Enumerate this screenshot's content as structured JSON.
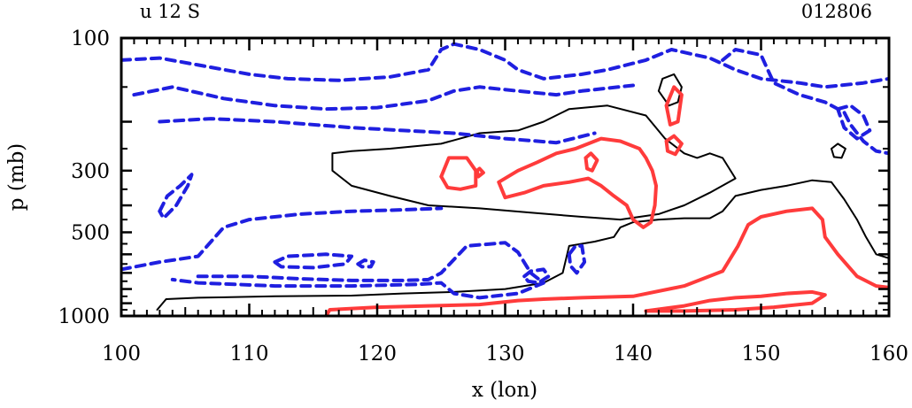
{
  "chart_data": {
    "type": "contour",
    "title_left": "u 12 S",
    "title_right": "012806",
    "xlabel": "x (lon)",
    "ylabel": "p (mb)",
    "xlim": [
      100,
      160
    ],
    "ylim": [
      1000,
      100
    ],
    "y_scale": "log",
    "xticks": [
      100,
      110,
      120,
      130,
      140,
      150,
      160
    ],
    "xtick_labels": [
      "100",
      "110",
      "120",
      "130",
      "140",
      "150",
      "160"
    ],
    "yticks": [
      100,
      300,
      500,
      1000
    ],
    "ytick_labels": [
      "100",
      "300",
      "500",
      "1000"
    ],
    "contour_styles": {
      "positive": {
        "color": "#ff3b3b",
        "line": "solid"
      },
      "zero": {
        "color": "#000000",
        "line": "solid"
      },
      "negative": {
        "color": "#1f1fe0",
        "line": "dashed"
      }
    },
    "contours": [
      {
        "sign": "zero",
        "points": [
          [
            102.8,
            950
          ],
          [
            103.5,
            870
          ],
          [
            106,
            860
          ],
          [
            112,
            850
          ],
          [
            118,
            845
          ],
          [
            122,
            830
          ],
          [
            126,
            820
          ],
          [
            130,
            800
          ],
          [
            133,
            760
          ],
          [
            134.5,
            700
          ],
          [
            135,
            560
          ],
          [
            137,
            540
          ],
          [
            138.5,
            520
          ],
          [
            139,
            480
          ],
          [
            140,
            460
          ],
          [
            142,
            450
          ],
          [
            144,
            445
          ],
          [
            146,
            445
          ],
          [
            147,
            420
          ],
          [
            148,
            370
          ],
          [
            150,
            352
          ],
          [
            152,
            340
          ],
          [
            154,
            325
          ],
          [
            155.5,
            330
          ],
          [
            156.5,
            380
          ],
          [
            157.5,
            450
          ],
          [
            158.2,
            520
          ],
          [
            159,
            600
          ],
          [
            160,
            620
          ]
        ]
      },
      {
        "sign": "zero",
        "points": [
          [
            116.5,
            260
          ],
          [
            118,
            255
          ],
          [
            121,
            250
          ],
          [
            125,
            240
          ],
          [
            128,
            220
          ],
          [
            131,
            215
          ],
          [
            133,
            200
          ],
          [
            135,
            180
          ],
          [
            138,
            175
          ],
          [
            141,
            190
          ],
          [
            142.5,
            230
          ],
          [
            144,
            260
          ],
          [
            145,
            270
          ],
          [
            146,
            260
          ],
          [
            147,
            270
          ],
          [
            148,
            320
          ],
          [
            146,
            360
          ],
          [
            144,
            400
          ],
          [
            142,
            430
          ],
          [
            139,
            450
          ],
          [
            136,
            440
          ],
          [
            132,
            425
          ],
          [
            128,
            410
          ],
          [
            124,
            400
          ],
          [
            121,
            370
          ],
          [
            118,
            340
          ],
          [
            116.5,
            300
          ],
          [
            116.5,
            260
          ]
        ]
      },
      {
        "sign": "zero",
        "points": [
          [
            142,
            155
          ],
          [
            142.3,
            140
          ],
          [
            143.2,
            135
          ],
          [
            143.8,
            150
          ],
          [
            143.5,
            170
          ],
          [
            142.8,
            175
          ],
          [
            142,
            155
          ]
        ]
      },
      {
        "sign": "zero",
        "points": [
          [
            155.5,
            250
          ],
          [
            156,
            240
          ],
          [
            156.6,
            250
          ],
          [
            156.3,
            270
          ],
          [
            155.7,
            268
          ],
          [
            155.5,
            250
          ]
        ]
      },
      {
        "sign": "positive",
        "points": [
          [
            116,
            1000
          ],
          [
            116.3,
            950
          ],
          [
            120,
            930
          ],
          [
            124,
            920
          ],
          [
            128,
            910
          ],
          [
            131,
            880
          ],
          [
            133,
            870
          ],
          [
            136,
            860
          ],
          [
            140,
            850
          ],
          [
            144,
            780
          ],
          [
            147,
            690
          ],
          [
            148.2,
            560
          ],
          [
            149,
            470
          ],
          [
            150,
            440
          ],
          [
            152,
            420
          ],
          [
            154,
            410
          ],
          [
            154.8,
            450
          ],
          [
            155,
            520
          ],
          [
            156,
            600
          ],
          [
            157.5,
            720
          ],
          [
            159,
            780
          ],
          [
            160,
            790
          ]
        ]
      },
      {
        "sign": "positive",
        "points": [
          [
            125,
            315
          ],
          [
            125.6,
            270
          ],
          [
            127,
            270
          ],
          [
            127.7,
            300
          ],
          [
            127.7,
            340
          ],
          [
            126.5,
            350
          ],
          [
            125.5,
            345
          ],
          [
            125,
            315
          ]
        ]
      },
      {
        "sign": "positive",
        "points": [
          [
            127.8,
            300
          ],
          [
            128,
            295
          ],
          [
            128.3,
            305
          ],
          [
            127.9,
            315
          ],
          [
            127.8,
            300
          ]
        ]
      },
      {
        "sign": "positive",
        "points": [
          [
            129.5,
            330
          ],
          [
            131,
            300
          ],
          [
            132.5,
            280
          ],
          [
            134,
            260
          ],
          [
            135.5,
            250
          ],
          [
            137.5,
            230
          ],
          [
            139,
            235
          ],
          [
            140.5,
            250
          ],
          [
            141,
            270
          ],
          [
            141.5,
            300
          ],
          [
            141.8,
            340
          ],
          [
            141.7,
            400
          ],
          [
            141.4,
            460
          ],
          [
            140.8,
            480
          ],
          [
            140,
            450
          ],
          [
            139.5,
            400
          ],
          [
            138.5,
            370
          ],
          [
            137.5,
            340
          ],
          [
            136.5,
            320
          ],
          [
            135,
            330
          ],
          [
            133,
            340
          ],
          [
            131.5,
            360
          ],
          [
            130,
            375
          ],
          [
            129.5,
            330
          ]
        ]
      },
      {
        "sign": "positive",
        "points": [
          [
            136.3,
            270
          ],
          [
            136.7,
            260
          ],
          [
            137.2,
            275
          ],
          [
            136.8,
            300
          ],
          [
            136.4,
            295
          ],
          [
            136.3,
            270
          ]
        ]
      },
      {
        "sign": "positive",
        "points": [
          [
            142.6,
            175
          ],
          [
            143.2,
            150
          ],
          [
            143.8,
            160
          ],
          [
            143.5,
            200
          ],
          [
            142.9,
            205
          ],
          [
            142.6,
            175
          ]
        ]
      },
      {
        "sign": "positive",
        "points": [
          [
            142.6,
            235
          ],
          [
            143.2,
            225
          ],
          [
            143.8,
            240
          ],
          [
            143.3,
            262
          ],
          [
            142.7,
            255
          ],
          [
            142.6,
            235
          ]
        ]
      },
      {
        "sign": "positive",
        "points": [
          [
            141,
            960
          ],
          [
            144,
            920
          ],
          [
            146,
            880
          ],
          [
            148,
            860
          ],
          [
            150,
            850
          ],
          [
            152,
            830
          ],
          [
            154,
            820
          ],
          [
            155,
            840
          ],
          [
            154,
            900
          ],
          [
            151,
            930
          ],
          [
            148,
            950
          ],
          [
            144,
            960
          ],
          [
            141,
            960
          ]
        ]
      },
      {
        "sign": "negative",
        "points": [
          [
            100,
            120
          ],
          [
            103,
            118
          ],
          [
            106,
            125
          ],
          [
            110,
            135
          ],
          [
            113,
            140
          ],
          [
            117,
            142
          ],
          [
            121,
            138
          ],
          [
            124,
            130
          ],
          [
            125,
            110
          ],
          [
            126,
            105
          ],
          [
            128,
            110
          ],
          [
            130,
            120
          ],
          [
            131,
            130
          ],
          [
            133,
            140
          ],
          [
            136,
            135
          ],
          [
            138,
            130
          ],
          [
            141,
            120
          ],
          [
            143,
            110
          ],
          [
            146,
            118
          ],
          [
            148,
            130
          ],
          [
            150,
            140
          ],
          [
            153,
            145
          ],
          [
            155,
            150
          ],
          [
            158,
            145
          ],
          [
            160,
            140
          ]
        ]
      },
      {
        "sign": "negative",
        "points": [
          [
            101,
            160
          ],
          [
            104,
            150
          ],
          [
            108,
            165
          ],
          [
            112,
            175
          ],
          [
            116,
            180
          ],
          [
            120,
            178
          ],
          [
            124,
            168
          ],
          [
            126,
            155
          ],
          [
            128,
            150
          ],
          [
            131,
            155
          ],
          [
            134,
            160
          ],
          [
            136,
            155
          ],
          [
            140,
            148
          ]
        ]
      },
      {
        "sign": "negative",
        "points": [
          [
            103,
            200
          ],
          [
            107,
            195
          ],
          [
            112,
            200
          ],
          [
            118,
            210
          ],
          [
            122,
            215
          ],
          [
            126,
            220
          ],
          [
            130,
            230
          ],
          [
            134,
            238
          ],
          [
            137,
            220
          ]
        ]
      },
      {
        "sign": "negative",
        "points": [
          [
            100,
            680
          ],
          [
            103,
            640
          ],
          [
            106,
            610
          ],
          [
            108,
            480
          ],
          [
            110,
            450
          ],
          [
            114,
            430
          ],
          [
            118,
            420
          ],
          [
            122,
            415
          ],
          [
            125,
            410
          ]
        ]
      },
      {
        "sign": "negative",
        "points": [
          [
            103,
            420
          ],
          [
            103.6,
            370
          ],
          [
            104.6,
            340
          ],
          [
            105.5,
            310
          ],
          [
            105.2,
            340
          ],
          [
            104.3,
            400
          ],
          [
            103.3,
            445
          ],
          [
            103,
            420
          ]
        ]
      },
      {
        "sign": "negative",
        "points": [
          [
            112,
            640
          ],
          [
            113,
            610
          ],
          [
            116,
            600
          ],
          [
            118,
            610
          ],
          [
            117.5,
            650
          ],
          [
            115,
            670
          ],
          [
            112.5,
            665
          ],
          [
            112,
            640
          ]
        ]
      },
      {
        "sign": "negative",
        "points": [
          [
            118.5,
            650
          ],
          [
            119,
            630
          ],
          [
            119.7,
            640
          ],
          [
            119.5,
            665
          ],
          [
            118.8,
            665
          ],
          [
            118.5,
            650
          ]
        ]
      },
      {
        "sign": "negative",
        "points": [
          [
            106,
            720
          ],
          [
            110,
            720
          ],
          [
            114,
            735
          ],
          [
            118,
            745
          ],
          [
            122,
            745
          ],
          [
            124,
            740
          ],
          [
            125,
            700
          ],
          [
            127,
            560
          ],
          [
            130,
            545
          ],
          [
            131,
            590
          ],
          [
            132,
            700
          ],
          [
            133,
            760
          ],
          [
            131,
            830
          ],
          [
            128,
            860
          ],
          [
            126,
            830
          ],
          [
            125,
            760
          ],
          [
            123,
            770
          ],
          [
            118,
            780
          ],
          [
            112,
            780
          ],
          [
            106,
            760
          ],
          [
            104,
            740
          ]
        ]
      },
      {
        "sign": "negative",
        "points": [
          [
            131.5,
            720
          ],
          [
            132,
            690
          ],
          [
            133,
            680
          ],
          [
            133.4,
            720
          ],
          [
            132.6,
            760
          ],
          [
            131.8,
            750
          ],
          [
            131.5,
            720
          ]
        ]
      },
      {
        "sign": "negative",
        "points": [
          [
            135,
            600
          ],
          [
            135.5,
            560
          ],
          [
            136,
            560
          ],
          [
            136.2,
            640
          ],
          [
            135.6,
            700
          ],
          [
            135.1,
            660
          ],
          [
            135,
            600
          ]
        ]
      },
      {
        "sign": "negative",
        "points": [
          [
            147,
            120
          ],
          [
            148,
            110
          ],
          [
            150,
            115
          ],
          [
            151,
            145
          ],
          [
            153,
            160
          ],
          [
            155,
            170
          ],
          [
            156.5,
            185
          ],
          [
            157,
            205
          ],
          [
            158,
            235
          ],
          [
            159,
            255
          ],
          [
            160,
            260
          ]
        ]
      },
      {
        "sign": "negative",
        "points": [
          [
            156,
            180
          ],
          [
            157,
            175
          ],
          [
            158,
            190
          ],
          [
            158.5,
            215
          ],
          [
            157.5,
            230
          ],
          [
            156.5,
            210
          ],
          [
            156,
            180
          ]
        ]
      }
    ]
  }
}
